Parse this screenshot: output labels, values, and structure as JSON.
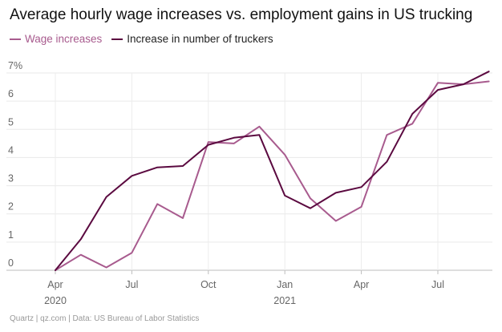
{
  "title": "Average hourly wage increases vs. employment gains in US trucking",
  "footer": "Quartz | qz.com | Data: US Bureau of Labor Statistics",
  "chart_data": {
    "type": "line",
    "title": "Average hourly wage increases vs. employment gains in US trucking",
    "xlabel": "",
    "ylabel": "",
    "x": [
      "2020-04",
      "2020-05",
      "2020-06",
      "2020-07",
      "2020-08",
      "2020-09",
      "2020-10",
      "2020-11",
      "2020-12",
      "2021-01",
      "2021-02",
      "2021-03",
      "2021-04",
      "2021-05",
      "2021-06",
      "2021-07",
      "2021-08",
      "2021-09"
    ],
    "ylim": [
      0,
      7
    ],
    "yticks": [
      0,
      1,
      2,
      3,
      4,
      5,
      6,
      7
    ],
    "ytick_labels": [
      "0",
      "1",
      "2",
      "3",
      "4",
      "5",
      "6",
      "7%"
    ],
    "xticks": [
      {
        "x": "2020-04",
        "label": "Apr",
        "year": "2020"
      },
      {
        "x": "2020-07",
        "label": "Jul",
        "year": ""
      },
      {
        "x": "2020-10",
        "label": "Oct",
        "year": ""
      },
      {
        "x": "2021-01",
        "label": "Jan",
        "year": "2021"
      },
      {
        "x": "2021-04",
        "label": "Apr",
        "year": ""
      },
      {
        "x": "2021-07",
        "label": "Jul",
        "year": ""
      }
    ],
    "grid": true,
    "legend_position": "top-left",
    "series": [
      {
        "name": "Wage increases",
        "color": "#a85b8e",
        "values": [
          0.0,
          0.55,
          0.1,
          0.62,
          2.35,
          1.85,
          4.55,
          4.5,
          5.1,
          4.1,
          2.55,
          1.75,
          2.25,
          4.8,
          5.2,
          6.65,
          6.6,
          6.7
        ]
      },
      {
        "name": "Increase in number of truckers",
        "color": "#5b0a40",
        "values": [
          0.0,
          1.1,
          2.6,
          3.35,
          3.65,
          3.7,
          4.45,
          4.7,
          4.8,
          2.65,
          2.2,
          2.75,
          2.95,
          3.85,
          5.55,
          6.4,
          6.6,
          7.05
        ]
      }
    ]
  }
}
